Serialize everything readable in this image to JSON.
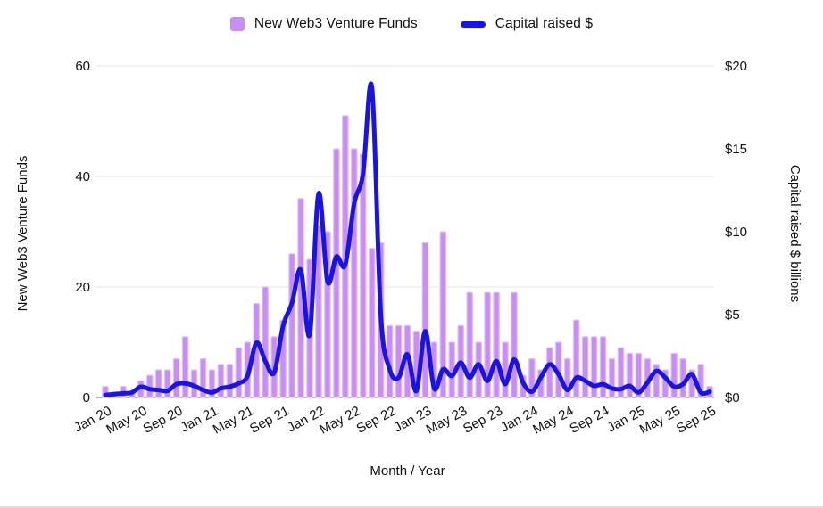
{
  "legend": {
    "funds_label": "New Web3 Venture Funds",
    "capital_label": "Capital raised $"
  },
  "axes": {
    "left_title": "New Web3 Venture Funds",
    "right_title": "Capital raised $ billions",
    "x_title": "Month / Year",
    "left_ticks": [
      "0",
      "20",
      "40",
      "60"
    ],
    "right_ticks": [
      "$0",
      "$5",
      "$10",
      "$15",
      "$20"
    ]
  },
  "colors": {
    "bar": "#c98df3",
    "bar_border": "#ddc2f9",
    "line": "#1a14e0",
    "grid": "#e6e6e6",
    "baseline": "#757575",
    "text": "#111111"
  },
  "chart_data": {
    "type": "combo",
    "x": [
      "Jan 20",
      "Feb 20",
      "Mar 20",
      "Apr 20",
      "May 20",
      "Jun 20",
      "Jul 20",
      "Aug 20",
      "Sep 20",
      "Oct 20",
      "Nov 20",
      "Dec 20",
      "Jan 21",
      "Feb 21",
      "Mar 21",
      "Apr 21",
      "May 21",
      "Jun 21",
      "Jul 21",
      "Aug 21",
      "Sep 21",
      "Oct 21",
      "Nov 21",
      "Dec 21",
      "Jan 22",
      "Feb 22",
      "Mar 22",
      "Apr 22",
      "May 22",
      "Jun 22",
      "Jul 22",
      "Aug 22",
      "Sep 22",
      "Oct 22",
      "Nov 22",
      "Dec 22",
      "Jan 23",
      "Feb 23",
      "Mar 23",
      "Apr 23",
      "May 23",
      "Jun 23",
      "Jul 23",
      "Aug 23",
      "Sep 23",
      "Oct 23",
      "Nov 23",
      "Dec 23",
      "Jan 24",
      "Feb 24",
      "Mar 24",
      "Apr 24",
      "May 24",
      "Jun 24",
      "Jul 24",
      "Aug 24",
      "Sep 24",
      "Oct 24",
      "Nov 24",
      "Dec 24",
      "Jan 25",
      "Feb 25",
      "Mar 25",
      "Apr 25",
      "May 25",
      "Jun 25",
      "Jul 25",
      "Aug 25",
      "Sep 25"
    ],
    "tick_every": 4,
    "series": [
      {
        "name": "New Web3 Venture Funds",
        "type": "bar",
        "axis": "left",
        "values": [
          2,
          1,
          2,
          1,
          3,
          4,
          5,
          5,
          7,
          11,
          5,
          7,
          5,
          6,
          6,
          9,
          10,
          17,
          20,
          11,
          14,
          26,
          36,
          25,
          31,
          30,
          45,
          51,
          45,
          44,
          27,
          28,
          13,
          13,
          13,
          12,
          28,
          10,
          30,
          10,
          13,
          19,
          10,
          19,
          19,
          10,
          19,
          4,
          7,
          5,
          9,
          10,
          7,
          14,
          11,
          11,
          11,
          7,
          9,
          8,
          8,
          7,
          6,
          5,
          8,
          7,
          5,
          6,
          2
        ]
      },
      {
        "name": "Capital raised $",
        "type": "line",
        "axis": "right",
        "values": [
          0.15,
          0.2,
          0.25,
          0.3,
          0.65,
          0.5,
          0.45,
          0.4,
          0.8,
          0.85,
          0.7,
          0.45,
          0.3,
          0.55,
          0.65,
          0.85,
          1.3,
          3.3,
          2.2,
          1.5,
          4.3,
          5.7,
          7.7,
          3.8,
          12.3,
          7.0,
          8.5,
          8.0,
          11.7,
          13.5,
          18.7,
          5.0,
          1.7,
          1.2,
          2.6,
          0.4,
          4.0,
          0.55,
          1.7,
          1.3,
          2.1,
          1.2,
          2.0,
          1.0,
          2.2,
          0.8,
          2.3,
          0.9,
          0.35,
          1.2,
          2.0,
          1.4,
          0.45,
          1.2,
          1.0,
          0.7,
          0.8,
          0.55,
          0.5,
          0.7,
          0.3,
          0.9,
          1.6,
          1.2,
          0.65,
          0.8,
          1.4,
          0.3,
          0.35
        ]
      }
    ],
    "left_axis": {
      "min": 0,
      "max": 60,
      "gridline_step": 20
    },
    "right_axis": {
      "min": 0,
      "max": 20,
      "label_step": 5,
      "unit": "$ billions"
    },
    "legend_position": "top",
    "grid": true
  }
}
